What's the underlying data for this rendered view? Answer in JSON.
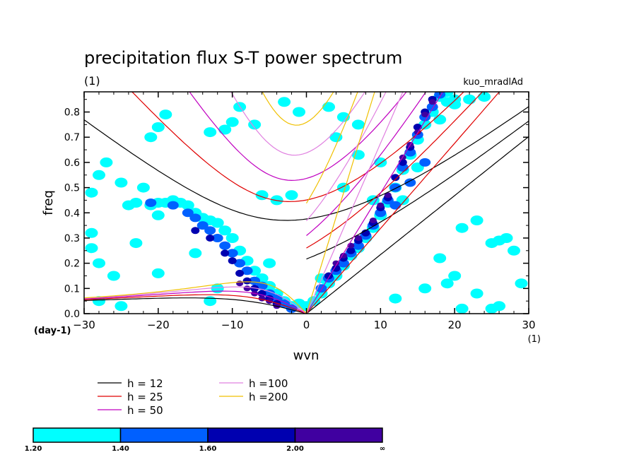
{
  "chart_data": {
    "type": "heatmap",
    "title": "precipitation flux S-T power spectrum",
    "subtitle_left": "(1)",
    "subtitle_right": "kuo_mradlAd",
    "xlabel": "wvn",
    "ylabel": "freq",
    "x_unit": "(1)",
    "y_unit": "(day-1)",
    "xlim": [
      -30,
      30
    ],
    "ylim": [
      0,
      0.88
    ],
    "x_ticks": [
      -30,
      -20,
      -10,
      0,
      10,
      20,
      30
    ],
    "x_tick_labels": [
      "-30",
      "-20",
      "-10",
      "0",
      "10",
      "20",
      "30"
    ],
    "y_ticks": [
      0.0,
      0.1,
      0.2,
      0.3,
      0.4,
      0.5,
      0.6,
      0.7,
      0.8
    ],
    "y_tick_labels": [
      "0.0",
      "0.1",
      "0.2",
      "0.3",
      "0.4",
      "0.5",
      "0.6",
      "0.7",
      "0.8"
    ],
    "dispersion_curves": [
      {
        "label": "h = 12",
        "h": 12,
        "color": "#000000"
      },
      {
        "label": "h = 25",
        "h": 25,
        "color": "#e00000"
      },
      {
        "label": "h = 50",
        "h": 50,
        "color": "#c000c0"
      },
      {
        "label": "h =100",
        "h": 100,
        "color": "#e080e0"
      },
      {
        "label": "h =200",
        "h": 200,
        "color": "#f0c000"
      }
    ],
    "colorbar": {
      "boundaries": [
        "1.20",
        "1.40",
        "1.60",
        "2.00",
        "∞"
      ],
      "colors": [
        "#00ffff",
        "#0060ff",
        "#0000b0",
        "#4000a0"
      ]
    },
    "contour_regions": [
      {
        "level": 0,
        "cells": [
          [
            -28,
            0.55
          ],
          [
            -27,
            0.6
          ],
          [
            -29,
            0.48
          ],
          [
            -25,
            0.52
          ],
          [
            -20,
            0.44
          ],
          [
            -18,
            0.45
          ],
          [
            -16,
            0.43
          ],
          [
            -14,
            0.38
          ],
          [
            -12,
            0.36
          ],
          [
            -10,
            0.3
          ],
          [
            -8,
            0.21
          ],
          [
            -7,
            0.17
          ],
          [
            -6,
            0.14
          ],
          [
            -5,
            0.11
          ],
          [
            -4,
            0.08
          ],
          [
            -3,
            0.05
          ],
          [
            -2,
            0.03
          ],
          [
            -9,
            0.25
          ],
          [
            -11,
            0.33
          ],
          [
            -13,
            0.37
          ],
          [
            -15,
            0.4
          ],
          [
            -17,
            0.44
          ],
          [
            -19,
            0.44
          ],
          [
            -21,
            0.43
          ],
          [
            -23,
            0.44
          ],
          [
            -24,
            0.43
          ],
          [
            -22,
            0.5
          ],
          [
            -21,
            0.7
          ],
          [
            -20,
            0.74
          ],
          [
            -19,
            0.79
          ],
          [
            -13,
            0.72
          ],
          [
            -11,
            0.73
          ],
          [
            -10,
            0.76
          ],
          [
            -9,
            0.82
          ],
          [
            -7,
            0.75
          ],
          [
            -3,
            0.84
          ],
          [
            -1,
            0.8
          ],
          [
            3,
            0.82
          ],
          [
            5,
            0.78
          ],
          [
            7,
            0.75
          ],
          [
            4,
            0.7
          ],
          [
            -2,
            0.47
          ],
          [
            -4,
            0.45
          ],
          [
            -6,
            0.47
          ],
          [
            5,
            0.5
          ],
          [
            9,
            0.45
          ],
          [
            7,
            0.63
          ],
          [
            19,
            0.84
          ],
          [
            20,
            0.85
          ],
          [
            22,
            0.85
          ],
          [
            24,
            0.86
          ],
          [
            26,
            0.29
          ],
          [
            21,
            0.34
          ],
          [
            23,
            0.37
          ],
          [
            25,
            0.28
          ],
          [
            27,
            0.3
          ],
          [
            28,
            0.25
          ],
          [
            29,
            0.12
          ],
          [
            19,
            0.12
          ],
          [
            20,
            0.15
          ],
          [
            23,
            0.08
          ],
          [
            25,
            0.02
          ],
          [
            21,
            0.02
          ],
          [
            26,
            0.03
          ],
          [
            -25,
            0.03
          ],
          [
            -28,
            0.05
          ],
          [
            -28,
            0.2
          ],
          [
            -20,
            0.39
          ],
          [
            -26,
            0.15
          ],
          [
            -20,
            0.16
          ],
          [
            -13,
            0.05
          ],
          [
            -15,
            0.24
          ],
          [
            16,
            0.1
          ],
          [
            18,
            0.22
          ],
          [
            -5,
            0.2
          ],
          [
            -29,
            0.26
          ],
          [
            -29,
            0.32
          ],
          [
            -23,
            0.28
          ],
          [
            -12,
            0.1
          ],
          [
            12,
            0.06
          ],
          [
            -1,
            0.04
          ],
          [
            0,
            0.03
          ],
          [
            1,
            0.05
          ],
          [
            2,
            0.08
          ],
          [
            3,
            0.12
          ],
          [
            4,
            0.15
          ],
          [
            5,
            0.19
          ],
          [
            6,
            0.23
          ],
          [
            7,
            0.26
          ],
          [
            8,
            0.3
          ],
          [
            9,
            0.34
          ],
          [
            10,
            0.39
          ],
          [
            11,
            0.44
          ],
          [
            12,
            0.5
          ],
          [
            13,
            0.57
          ],
          [
            14,
            0.63
          ],
          [
            15,
            0.69
          ],
          [
            16,
            0.75
          ],
          [
            17,
            0.8
          ],
          [
            18,
            0.86
          ],
          [
            19,
            0.88
          ],
          [
            2,
            0.14
          ],
          [
            13,
            0.45
          ],
          [
            15,
            0.58
          ],
          [
            18,
            0.77
          ],
          [
            20,
            0.83
          ],
          [
            10,
            0.6
          ]
        ]
      },
      {
        "level": 1,
        "cells": [
          [
            -21,
            0.44
          ],
          [
            -18,
            0.43
          ],
          [
            -16,
            0.4
          ],
          [
            -15,
            0.38
          ],
          [
            -14,
            0.35
          ],
          [
            -13,
            0.33
          ],
          [
            -12,
            0.3
          ],
          [
            -11,
            0.27
          ],
          [
            -10,
            0.24
          ],
          [
            -9,
            0.2
          ],
          [
            -8,
            0.17
          ],
          [
            -7,
            0.13
          ],
          [
            -6,
            0.11
          ],
          [
            -5,
            0.08
          ],
          [
            -4,
            0.06
          ],
          [
            -3,
            0.04
          ],
          [
            -2,
            0.02
          ],
          [
            2,
            0.1
          ],
          [
            3,
            0.14
          ],
          [
            4,
            0.17
          ],
          [
            5,
            0.2
          ],
          [
            6,
            0.24
          ],
          [
            7,
            0.27
          ],
          [
            8,
            0.31
          ],
          [
            9,
            0.35
          ],
          [
            10,
            0.4
          ],
          [
            11,
            0.45
          ],
          [
            12,
            0.5
          ],
          [
            13,
            0.58
          ],
          [
            14,
            0.64
          ],
          [
            15,
            0.71
          ],
          [
            16,
            0.78
          ],
          [
            17,
            0.82
          ],
          [
            18,
            0.87
          ],
          [
            12,
            0.43
          ],
          [
            14,
            0.52
          ],
          [
            16,
            0.6
          ]
        ]
      },
      {
        "level": 2,
        "cells": [
          [
            -15,
            0.33
          ],
          [
            -13,
            0.3
          ],
          [
            -11,
            0.24
          ],
          [
            -10,
            0.21
          ],
          [
            -9,
            0.16
          ],
          [
            -8,
            0.13
          ],
          [
            -7,
            0.1
          ],
          [
            -6,
            0.08
          ],
          [
            -5,
            0.06
          ],
          [
            -4,
            0.04
          ],
          [
            3,
            0.15
          ],
          [
            4,
            0.18
          ],
          [
            5,
            0.22
          ],
          [
            6,
            0.25
          ],
          [
            7,
            0.29
          ],
          [
            8,
            0.32
          ],
          [
            9,
            0.36
          ],
          [
            10,
            0.42
          ],
          [
            11,
            0.46
          ],
          [
            12,
            0.54
          ],
          [
            13,
            0.6
          ],
          [
            14,
            0.66
          ],
          [
            15,
            0.74
          ],
          [
            16,
            0.8
          ],
          [
            17,
            0.85
          ]
        ]
      },
      {
        "level": 3,
        "cells": [
          [
            -9,
            0.12
          ],
          [
            -8,
            0.1
          ],
          [
            -7,
            0.08
          ],
          [
            -6,
            0.06
          ],
          [
            -5,
            0.05
          ],
          [
            -4,
            0.03
          ],
          [
            4,
            0.2
          ],
          [
            5,
            0.23
          ],
          [
            6,
            0.27
          ],
          [
            7,
            0.3
          ],
          [
            9,
            0.37
          ],
          [
            10,
            0.43
          ],
          [
            11,
            0.47
          ],
          [
            13,
            0.62
          ],
          [
            14,
            0.67
          ],
          [
            15,
            0.72
          ],
          [
            16,
            0.79
          ],
          [
            17,
            0.84
          ]
        ]
      }
    ]
  }
}
